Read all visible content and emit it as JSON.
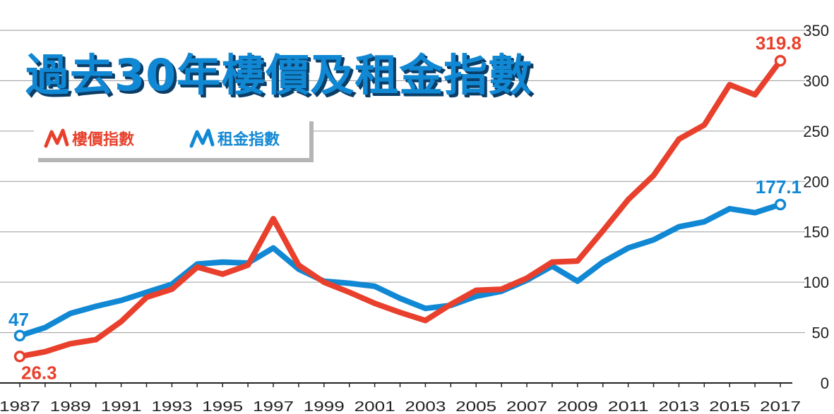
{
  "title": "過去30年樓價及租金指數",
  "legend": [
    {
      "label": "樓價指數",
      "color": "#e8402c",
      "icon": "zigzag-line-icon"
    },
    {
      "label": "租金指數",
      "color": "#1188d4",
      "icon": "zigzag-line-icon"
    }
  ],
  "chart_data": {
    "type": "line",
    "title": "過去30年樓價及租金指數",
    "x": [
      1987,
      1988,
      1989,
      1990,
      1991,
      1992,
      1993,
      1994,
      1995,
      1996,
      1997,
      1998,
      1999,
      2000,
      2001,
      2002,
      2003,
      2004,
      2005,
      2006,
      2007,
      2008,
      2009,
      2010,
      2011,
      2012,
      2013,
      2014,
      2015,
      2016,
      2017
    ],
    "x_tick_labels": [
      "1987",
      "1989",
      "1991",
      "1993",
      "1995",
      "1997",
      "1999",
      "2001",
      "2003",
      "2005",
      "2007",
      "2009",
      "2011",
      "2013",
      "2015",
      "2017"
    ],
    "ylim": [
      0,
      350
    ],
    "y_ticks": [
      0,
      50,
      100,
      150,
      200,
      250,
      300,
      350
    ],
    "y_axis_position": "right",
    "grid": true,
    "legend_position": "top-left",
    "series": [
      {
        "name": "樓價指數",
        "color": "#e8402c",
        "values": [
          26.3,
          31,
          39,
          43,
          61,
          85,
          93,
          115,
          108,
          117,
          163,
          117,
          100,
          90,
          79,
          70,
          62,
          78,
          92,
          93,
          104,
          120,
          121,
          151,
          182,
          206,
          242,
          256,
          296,
          286,
          319.8
        ],
        "start_label": "26.3",
        "end_label": "319.8"
      },
      {
        "name": "租金指數",
        "color": "#1188d4",
        "values": [
          47,
          55,
          69,
          76,
          82,
          90,
          98,
          118,
          120,
          119,
          134,
          113,
          101,
          99,
          96,
          84,
          74,
          77,
          86,
          91,
          102,
          116,
          101,
          120,
          134,
          142,
          155,
          160,
          173,
          169,
          177.1
        ],
        "start_label": "47",
        "end_label": "177.1"
      }
    ]
  }
}
